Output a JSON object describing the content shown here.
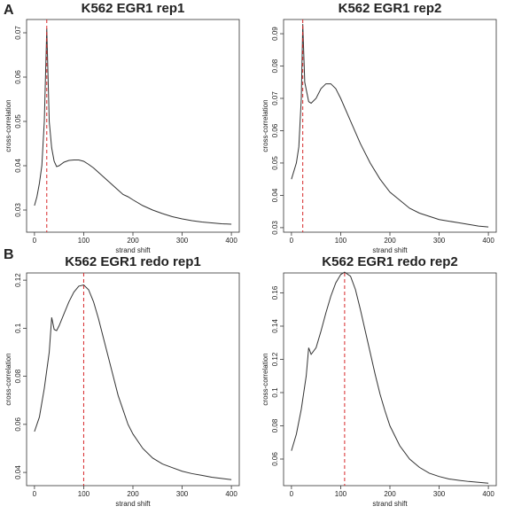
{
  "panel_labels": [
    "A",
    "B"
  ],
  "chart_data": [
    {
      "type": "line",
      "title": "K562 EGR1 rep1",
      "xlabel": "strand shift",
      "ylabel": "cross-correlation",
      "xlim": [
        -16,
        416
      ],
      "xticks": [
        0,
        100,
        200,
        300,
        400
      ],
      "ylim": [
        0.025,
        0.073
      ],
      "yticks": [
        0.03,
        0.04,
        0.05,
        0.06,
        0.07
      ],
      "vline": 25,
      "vline_color": "#d62728",
      "series": [
        {
          "name": "rep1",
          "color": "#333333",
          "x": [
            0,
            5,
            10,
            15,
            20,
            25,
            30,
            35,
            40,
            45,
            50,
            60,
            70,
            80,
            90,
            100,
            110,
            120,
            130,
            140,
            150,
            160,
            170,
            180,
            190,
            200,
            220,
            240,
            260,
            280,
            300,
            320,
            340,
            360,
            380,
            400
          ],
          "values": [
            0.031,
            0.033,
            0.036,
            0.04,
            0.05,
            0.071,
            0.05,
            0.044,
            0.041,
            0.0398,
            0.04,
            0.0408,
            0.0412,
            0.0413,
            0.0413,
            0.041,
            0.0403,
            0.0395,
            0.0385,
            0.0375,
            0.0365,
            0.0355,
            0.0345,
            0.0335,
            0.033,
            0.0323,
            0.031,
            0.03,
            0.0292,
            0.0285,
            0.028,
            0.0276,
            0.0273,
            0.0271,
            0.0269,
            0.0268
          ]
        }
      ]
    },
    {
      "type": "line",
      "title": "K562 EGR1 rep2",
      "xlabel": "strand shift",
      "ylabel": "cross-correlation",
      "xlim": [
        -16,
        416
      ],
      "xticks": [
        0,
        100,
        200,
        300,
        400
      ],
      "ylim": [
        0.0286,
        0.0944
      ],
      "yticks": [
        0.03,
        0.04,
        0.05,
        0.06,
        0.07,
        0.08,
        0.09
      ],
      "vline": 23,
      "vline_color": "#d62728",
      "series": [
        {
          "name": "rep2",
          "color": "#333333",
          "x": [
            0,
            10,
            15,
            20,
            23,
            27,
            35,
            40,
            50,
            60,
            70,
            80,
            90,
            100,
            120,
            140,
            160,
            180,
            200,
            220,
            240,
            260,
            280,
            300,
            320,
            340,
            360,
            380,
            400
          ],
          "values": [
            0.045,
            0.05,
            0.055,
            0.07,
            0.093,
            0.075,
            0.069,
            0.0685,
            0.07,
            0.073,
            0.0745,
            0.0745,
            0.073,
            0.07,
            0.063,
            0.056,
            0.05,
            0.045,
            0.041,
            0.0385,
            0.036,
            0.0345,
            0.0335,
            0.0325,
            0.032,
            0.0315,
            0.031,
            0.0305,
            0.0302
          ]
        }
      ]
    },
    {
      "type": "line",
      "title": "K562 EGR1 redo rep1",
      "xlabel": "strand shift",
      "ylabel": "cross-correlation",
      "xlim": [
        -16,
        416
      ],
      "xticks": [
        0,
        100,
        200,
        300,
        400
      ],
      "ylim": [
        0.0345,
        0.123
      ],
      "yticks": [
        0.04,
        0.06,
        0.08,
        0.1,
        0.12
      ],
      "vline": 100,
      "vline_color": "#d62728",
      "series": [
        {
          "name": "redo rep1",
          "color": "#333333",
          "x": [
            0,
            10,
            20,
            30,
            35,
            40,
            45,
            50,
            60,
            70,
            80,
            90,
            100,
            110,
            120,
            130,
            140,
            150,
            160,
            170,
            180,
            190,
            200,
            220,
            240,
            260,
            280,
            300,
            320,
            340,
            360,
            380,
            400
          ],
          "values": [
            0.057,
            0.063,
            0.075,
            0.09,
            0.1045,
            0.0995,
            0.099,
            0.101,
            0.106,
            0.111,
            0.115,
            0.1175,
            0.118,
            0.116,
            0.111,
            0.104,
            0.096,
            0.088,
            0.08,
            0.072,
            0.066,
            0.06,
            0.056,
            0.05,
            0.046,
            0.0435,
            0.042,
            0.0405,
            0.0395,
            0.0388,
            0.038,
            0.0375,
            0.037
          ]
        }
      ]
    },
    {
      "type": "line",
      "title": "K562 EGR1 redo rep2",
      "xlabel": "strand shift",
      "ylabel": "cross-correlation",
      "xlim": [
        -16,
        416
      ],
      "xticks": [
        0,
        100,
        200,
        300,
        400
      ],
      "ylim": [
        0.044,
        0.172
      ],
      "yticks": [
        0.06,
        0.08,
        0.1,
        0.12,
        0.14,
        0.16
      ],
      "vline": 108,
      "vline_color": "#d62728",
      "series": [
        {
          "name": "redo rep2",
          "color": "#333333",
          "x": [
            0,
            10,
            20,
            30,
            35,
            40,
            50,
            60,
            70,
            80,
            90,
            100,
            108,
            120,
            130,
            140,
            150,
            160,
            170,
            180,
            190,
            200,
            220,
            240,
            260,
            280,
            300,
            320,
            340,
            360,
            380,
            400
          ],
          "values": [
            0.065,
            0.075,
            0.09,
            0.11,
            0.127,
            0.123,
            0.127,
            0.137,
            0.148,
            0.158,
            0.166,
            0.171,
            0.1725,
            0.17,
            0.162,
            0.15,
            0.137,
            0.124,
            0.111,
            0.099,
            0.089,
            0.08,
            0.068,
            0.06,
            0.055,
            0.0515,
            0.0495,
            0.048,
            0.0472,
            0.0465,
            0.046,
            0.0455
          ]
        }
      ]
    }
  ]
}
